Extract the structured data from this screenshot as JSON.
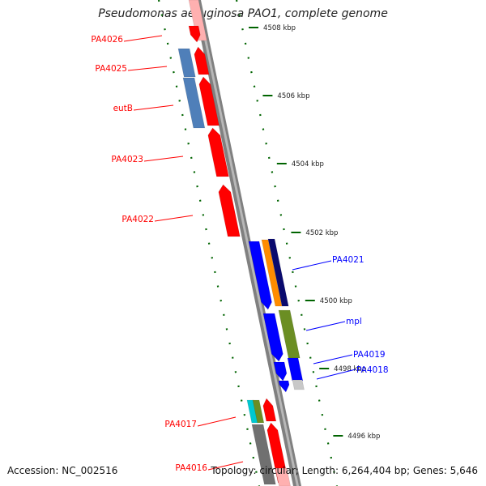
{
  "title": "Pseudomonas aeruginosa PAO1, complete genome",
  "accession": "Accession: NC_002516",
  "summary": "Topology: circular; Length: 6,264,404 bp; Genes: 5,646",
  "colors": {
    "forward": "#ff0000",
    "reverse": "#0000ff",
    "tick": "#006400",
    "backbone": "#808080"
  },
  "ticks": [
    {
      "label": "4508 kbp"
    },
    {
      "label": "4506 kbp"
    },
    {
      "label": "4504 kbp"
    },
    {
      "label": "4502 kbp"
    },
    {
      "label": "4500 kbp"
    },
    {
      "label": "4498 kbp"
    },
    {
      "label": "4496 kbp"
    }
  ],
  "gene_labels": [
    {
      "label": "PA4026",
      "strand": "forward"
    },
    {
      "label": "PA4025",
      "strand": "forward"
    },
    {
      "label": "eutB",
      "strand": "forward"
    },
    {
      "label": "PA4023",
      "strand": "forward"
    },
    {
      "label": "PA4022",
      "strand": "forward"
    },
    {
      "label": "PA4021",
      "strand": "reverse"
    },
    {
      "label": "mpl",
      "strand": "reverse"
    },
    {
      "label": "PA4019",
      "strand": "reverse"
    },
    {
      "label": "PA4018",
      "strand": "reverse"
    },
    {
      "label": "PA4017",
      "strand": "forward"
    },
    {
      "label": "PA4016",
      "strand": "forward"
    }
  ]
}
